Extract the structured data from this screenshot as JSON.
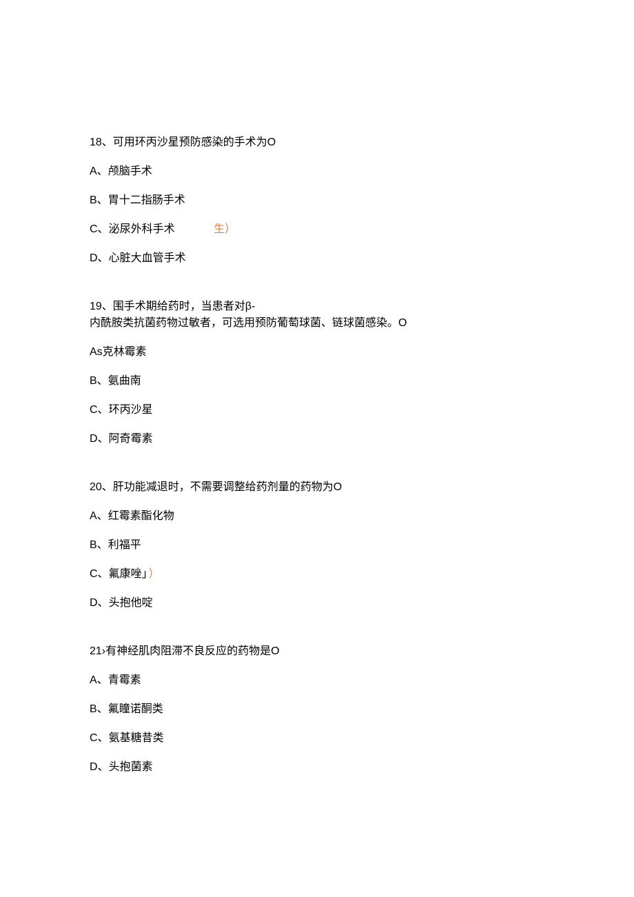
{
  "questions": [
    {
      "number": "18",
      "stem_lines": [
        "18、可用环丙沙星预防感染的手术为O"
      ],
      "options": [
        {
          "label": "A、",
          "text": "颅脑手术",
          "anno": ""
        },
        {
          "label": "B、",
          "text": "胃十二指肠手术",
          "anno": ""
        },
        {
          "label": "C、",
          "text": "泌尿外科手术",
          "anno": "生）"
        },
        {
          "label": "D、",
          "text": "心脏大血管手术",
          "anno": ""
        }
      ]
    },
    {
      "number": "19",
      "stem_lines": [
        "19、围手术期给药时，当患者对β-",
        "内酰胺类抗菌药物过敏者，可选用预防葡萄球菌、链球菌感染。O"
      ],
      "options": [
        {
          "label": "As",
          "text": "克林霉素",
          "anno": ""
        },
        {
          "label": "B、",
          "text": "氨曲南",
          "anno": ""
        },
        {
          "label": "C、",
          "text": "环丙沙星",
          "anno": ""
        },
        {
          "label": "D、",
          "text": "阿奇霉素",
          "anno": ""
        }
      ]
    },
    {
      "number": "20",
      "stem_lines": [
        "20、肝功能减退时，不需要调整给药剂量的药物为O"
      ],
      "options": [
        {
          "label": "A、",
          "text": "红霉素酯化物",
          "anno": ""
        },
        {
          "label": "B、",
          "text": "利福平",
          "anno": ""
        },
        {
          "label": "C、",
          "text": "氟康唑」",
          "anno2": "）"
        },
        {
          "label": "D、",
          "text": "头抱他啶",
          "anno": ""
        }
      ]
    },
    {
      "number": "21",
      "stem_lines": [
        "21›有神经肌肉阻滞不良反应的药物是O"
      ],
      "options": [
        {
          "label": "A、",
          "text": "青霉素",
          "anno": ""
        },
        {
          "label": "B、",
          "text": "氟瞳诺酮类",
          "anno": ""
        },
        {
          "label": "C、",
          "text": "氨基糖昔类",
          "anno": ""
        },
        {
          "label": "D、",
          "text": "头抱菌素",
          "anno": ""
        }
      ]
    }
  ]
}
